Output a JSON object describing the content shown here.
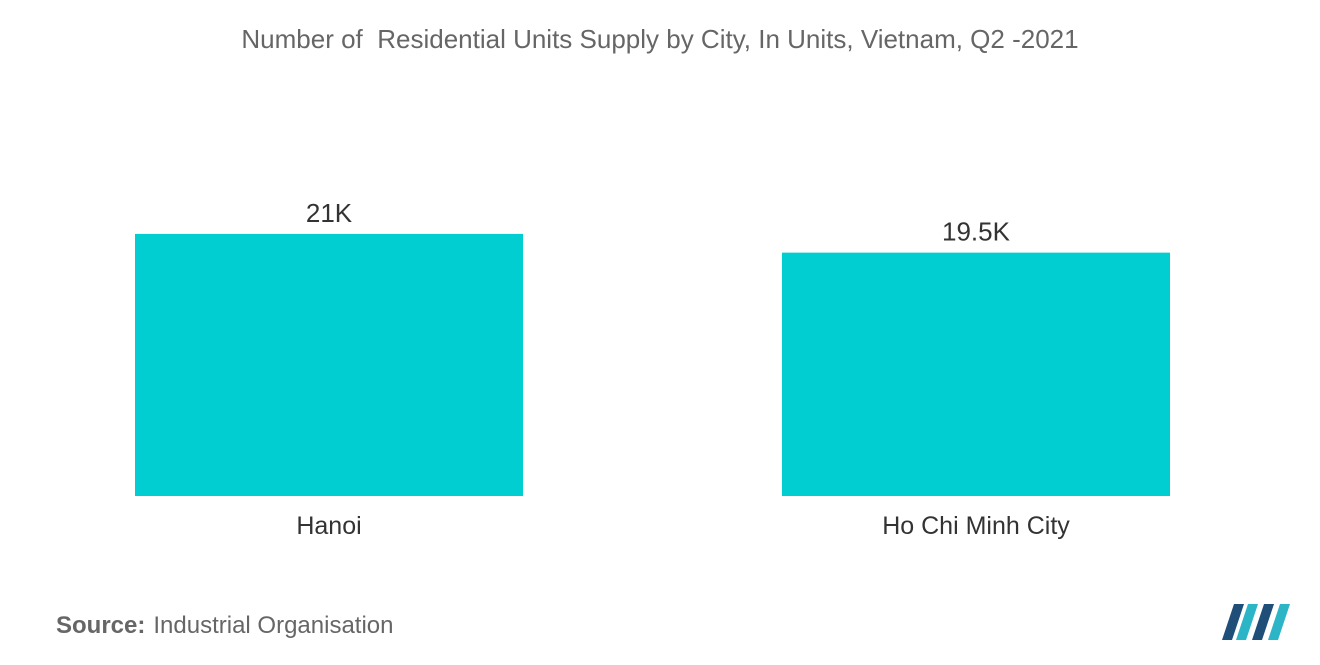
{
  "chart_data": {
    "type": "bar",
    "title": "Number of  Residential Units Supply by City, In Units, Vietnam, Q2 -2021",
    "categories": [
      "Hanoi",
      "Ho Chi Minh City"
    ],
    "values": [
      21000,
      19500
    ],
    "data_labels": [
      "21K",
      "19.5K"
    ],
    "xlabel": "",
    "ylabel": "",
    "ylim": [
      0,
      25000
    ],
    "grid": false,
    "legend": "none",
    "bar_color": "#00CED1"
  },
  "source": {
    "label": "Source:",
    "value": "Industrial Organisation"
  },
  "logo": {
    "icon": "mordor-intelligence-logo",
    "colors": [
      "#1F4E79",
      "#2BB5C7"
    ]
  }
}
